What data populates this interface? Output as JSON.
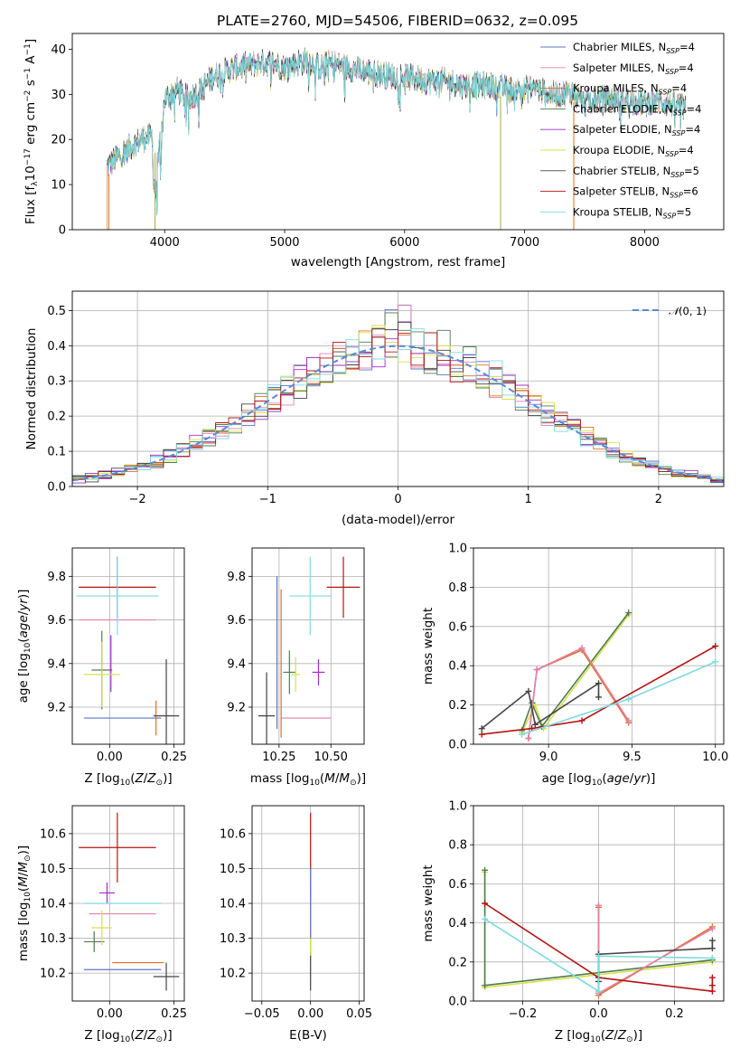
{
  "colors": {
    "Chabrier MILES": "#5b74c9",
    "Salpeter MILES": "#e27fb0",
    "Kroupa MILES": "#e07020",
    "Chabrier ELODIE": "#4e7d4e",
    "Salpeter ELODIE": "#9b2fc2",
    "Kroupa ELODIE": "#d6e04a",
    "Chabrier STELIB": "#444444",
    "Salpeter STELIB": "#b51414",
    "Kroupa STELIB": "#7fd9e0"
  },
  "chart_data": [
    {
      "type": "line",
      "title": "PLATE=2760, MJD=54506, FIBERID=0632, z=0.095",
      "xlabel": "wavelength [Angstrom, rest frame]",
      "ylabel": "Flux [f_λ10^-17 erg cm^-2 s^-1 A^-1]",
      "xlim": [
        3230,
        8660
      ],
      "ylim": [
        0,
        43.5
      ],
      "xticks": [
        4000,
        5000,
        6000,
        7000,
        8000
      ],
      "yticks": [
        0,
        10,
        20,
        30,
        40
      ],
      "legend_placement": "upper-right",
      "legend": [
        {
          "label": "Chabrier MILES, N",
          "sub": "SSP",
          "suffix": "=4"
        },
        {
          "label": "Salpeter MILES, N",
          "sub": "SSP",
          "suffix": "=4"
        },
        {
          "label": "Kroupa MILES, N",
          "sub": "SSP",
          "suffix": "=4"
        },
        {
          "label": "Chabrier ELODIE, N",
          "sub": "SSP",
          "suffix": "=4"
        },
        {
          "label": "Salpeter ELODIE, N",
          "sub": "SSP",
          "suffix": "=4"
        },
        {
          "label": "Kroupa ELODIE, N",
          "sub": "SSP",
          "suffix": "=4"
        },
        {
          "label": "Chabrier STELIB, N",
          "sub": "SSP",
          "suffix": "=5"
        },
        {
          "label": "Salpeter STELIB, N",
          "sub": "SSP",
          "suffix": "=6"
        },
        {
          "label": "Kroupa STELIB, N",
          "sub": "SSP",
          "suffix": "=5"
        }
      ],
      "spectrum_envelope": [
        [
          3520,
          14
        ],
        [
          3600,
          16
        ],
        [
          3700,
          18
        ],
        [
          3800,
          20
        ],
        [
          3900,
          21
        ],
        [
          3950,
          16
        ],
        [
          4000,
          29
        ],
        [
          4100,
          31
        ],
        [
          4200,
          29
        ],
        [
          4300,
          31
        ],
        [
          4400,
          34
        ],
        [
          4500,
          35
        ],
        [
          4600,
          36
        ],
        [
          4700,
          36.5
        ],
        [
          4800,
          37
        ],
        [
          4900,
          37
        ],
        [
          5000,
          36
        ],
        [
          5100,
          37
        ],
        [
          5200,
          37.5
        ],
        [
          5300,
          36
        ],
        [
          5400,
          37
        ],
        [
          5500,
          36
        ],
        [
          5600,
          35.5
        ],
        [
          5700,
          35
        ],
        [
          5800,
          34.5
        ],
        [
          5900,
          34
        ],
        [
          6000,
          34
        ],
        [
          6100,
          33.5
        ],
        [
          6200,
          33
        ],
        [
          6300,
          33
        ],
        [
          6400,
          32.5
        ],
        [
          6500,
          32
        ],
        [
          6600,
          32
        ],
        [
          6700,
          32
        ],
        [
          6800,
          31.5
        ],
        [
          6900,
          31
        ],
        [
          7000,
          31
        ],
        [
          7100,
          31.5
        ],
        [
          7200,
          30
        ],
        [
          7300,
          30
        ],
        [
          7400,
          30.5
        ],
        [
          7500,
          28
        ],
        [
          7600,
          29
        ],
        [
          7700,
          29
        ],
        [
          7800,
          28.5
        ],
        [
          7900,
          28.5
        ],
        [
          8000,
          28
        ],
        [
          8100,
          28.5
        ],
        [
          8200,
          28
        ],
        [
          8300,
          27.5
        ],
        [
          8340,
          27
        ]
      ]
    },
    {
      "type": "step",
      "xlabel": "(data-model)/error",
      "ylabel": "Normed distribution",
      "xlim": [
        -2.5,
        2.5
      ],
      "ylim": [
        0,
        0.555
      ],
      "xticks": [
        -2,
        -1,
        0,
        1,
        2
      ],
      "yticks": [
        0.0,
        0.1,
        0.2,
        0.3,
        0.4,
        0.5
      ],
      "legend_placement": "upper-right",
      "curve_label": "N(0,1)",
      "curve_label_prefix": "𝒩",
      "curve_label_suffix": "(0, 1)",
      "bin_width": 0.1
    },
    {
      "type": "errorbar",
      "xlabel": "Z [log10(Z/Z_sun)]",
      "ylabel": "age [log10(age/yr)]",
      "xlim": [
        -0.145,
        0.29
      ],
      "ylim": [
        9.03,
        9.93
      ],
      "xticks": [
        0.0,
        0.25
      ],
      "yticks": [
        9.2,
        9.4,
        9.6,
        9.8
      ],
      "points": [
        {
          "model": "Chabrier MILES",
          "x": 0.05,
          "xerr": 0.15,
          "y": 9.15,
          "yerr": 0.0
        },
        {
          "model": "Salpeter MILES",
          "x": 0.03,
          "xerr": 0.15,
          "y": 9.6,
          "yerr": 0.0
        },
        {
          "model": "Kroupa MILES",
          "x": 0.18,
          "xerr": 0.0,
          "y": 9.15,
          "yerr": 0.08
        },
        {
          "model": "Chabrier ELODIE",
          "x": -0.03,
          "xerr": 0.04,
          "y": 9.37,
          "yerr": 0.18
        },
        {
          "model": "Salpeter ELODIE",
          "x": 0.005,
          "xerr": 0.0,
          "y": 9.4,
          "yerr": 0.13
        },
        {
          "model": "Kroupa ELODIE",
          "x": -0.03,
          "xerr": 0.07,
          "y": 9.35,
          "yerr": 0.15
        },
        {
          "model": "Chabrier STELIB",
          "x": 0.22,
          "xerr": 0.05,
          "y": 9.16,
          "yerr": 0.26
        },
        {
          "model": "Salpeter STELIB",
          "x": 0.03,
          "xerr": 0.15,
          "y": 9.75,
          "yerr": 0.14
        },
        {
          "model": "Kroupa STELIB",
          "x": 0.03,
          "xerr": 0.16,
          "y": 9.71,
          "yerr": 0.18
        }
      ]
    },
    {
      "type": "errorbar",
      "xlabel": "mass [log10(M/M_sun)]",
      "ylabel": "",
      "xlim": [
        10.12,
        10.66
      ],
      "ylim": [
        9.03,
        9.93
      ],
      "xticks": [
        10.25,
        10.5
      ],
      "yticks": [
        9.2,
        9.4,
        9.6,
        9.8
      ],
      "points": [
        {
          "model": "Chabrier MILES",
          "x": 10.24,
          "xerr": 0.0,
          "y": 9.45,
          "yerr": 0.35
        },
        {
          "model": "Salpeter MILES",
          "x": 10.38,
          "xerr": 0.12,
          "y": 9.15,
          "yerr": 0.0
        },
        {
          "model": "Kroupa MILES",
          "x": 10.26,
          "xerr": 0.0,
          "y": 9.4,
          "yerr": 0.34
        },
        {
          "model": "Chabrier ELODIE",
          "x": 10.3,
          "xerr": 0.03,
          "y": 9.36,
          "yerr": 0.1
        },
        {
          "model": "Salpeter ELODIE",
          "x": 10.44,
          "xerr": 0.03,
          "y": 9.36,
          "yerr": 0.06
        },
        {
          "model": "Kroupa ELODIE",
          "x": 10.33,
          "xerr": 0.02,
          "y": 9.35,
          "yerr": 0.08
        },
        {
          "model": "Chabrier STELIB",
          "x": 10.19,
          "xerr": 0.04,
          "y": 9.16,
          "yerr": 0.2
        },
        {
          "model": "Salpeter STELIB",
          "x": 10.56,
          "xerr": 0.08,
          "y": 9.75,
          "yerr": 0.14
        },
        {
          "model": "Kroupa STELIB",
          "x": 10.4,
          "xerr": 0.1,
          "y": 9.71,
          "yerr": 0.18
        }
      ]
    },
    {
      "type": "line",
      "xlabel": "age [log10(age/yr)]",
      "ylabel": "mass weight",
      "xlim": [
        8.55,
        10.05
      ],
      "ylim": [
        0.0,
        1.0
      ],
      "xticks": [
        9.0,
        9.5,
        10.0
      ],
      "yticks": [
        0.0,
        0.2,
        0.4,
        0.6,
        0.8,
        1.0
      ],
      "series": [
        {
          "model": "Kroupa ELODIE",
          "x": [
            8.84,
            8.92,
            8.97,
            9.48
          ],
          "y": [
            0.06,
            0.2,
            0.08,
            0.66
          ]
        },
        {
          "model": "Chabrier ELODIE",
          "x": [
            8.84,
            8.9,
            8.96,
            9.48
          ],
          "y": [
            0.07,
            0.21,
            0.09,
            0.67
          ]
        },
        {
          "model": "Kroupa MILES",
          "x": [
            8.88,
            8.93,
            9.2,
            9.48
          ],
          "y": [
            0.03,
            0.38,
            0.48,
            0.11
          ]
        },
        {
          "model": "Salpeter MILES",
          "x": [
            8.88,
            8.93,
            9.2,
            9.48
          ],
          "y": [
            0.03,
            0.38,
            0.49,
            0.12
          ]
        },
        {
          "model": "Chabrier STELIB",
          "x": [
            8.6,
            8.88,
            8.92,
            9.3,
            9.3
          ],
          "y": [
            0.08,
            0.27,
            0.1,
            0.31,
            0.24
          ]
        },
        {
          "model": "Salpeter STELIB",
          "x": [
            8.6,
            8.9,
            9.2,
            10.0
          ],
          "y": [
            0.05,
            0.08,
            0.12,
            0.5
          ]
        },
        {
          "model": "Kroupa STELIB",
          "x": [
            8.84,
            9.48,
            10.0
          ],
          "y": [
            0.05,
            0.23,
            0.42
          ]
        }
      ]
    },
    {
      "type": "errorbar",
      "xlabel": "Z [log10(Z/Z_sun)]",
      "ylabel": "mass [log10(M/M_sun)]",
      "xlim": [
        -0.145,
        0.29
      ],
      "ylim": [
        10.12,
        10.68
      ],
      "xticks": [
        0.0,
        0.25
      ],
      "yticks": [
        10.2,
        10.3,
        10.4,
        10.5,
        10.6
      ],
      "points": [
        {
          "model": "Chabrier MILES",
          "x": 0.05,
          "xerr": 0.15,
          "y": 10.21,
          "yerr": 0.0
        },
        {
          "model": "Salpeter MILES",
          "x": 0.05,
          "xerr": 0.13,
          "y": 10.37,
          "yerr": 0.0
        },
        {
          "model": "Kroupa MILES",
          "x": 0.11,
          "xerr": 0.1,
          "y": 10.23,
          "yerr": 0.0
        },
        {
          "model": "Chabrier ELODIE",
          "x": -0.06,
          "xerr": 0.04,
          "y": 10.29,
          "yerr": 0.03
        },
        {
          "model": "Salpeter ELODIE",
          "x": -0.01,
          "xerr": 0.03,
          "y": 10.43,
          "yerr": 0.03
        },
        {
          "model": "Kroupa ELODIE",
          "x": -0.03,
          "xerr": 0.04,
          "y": 10.33,
          "yerr": 0.05
        },
        {
          "model": "Chabrier STELIB",
          "x": 0.22,
          "xerr": 0.05,
          "y": 10.19,
          "yerr": 0.04
        },
        {
          "model": "Salpeter STELIB",
          "x": 0.03,
          "xerr": 0.15,
          "y": 10.56,
          "yerr": 0.1
        },
        {
          "model": "Kroupa STELIB",
          "x": 0.05,
          "xerr": 0.15,
          "y": 10.4,
          "yerr": 0.0
        }
      ]
    },
    {
      "type": "errorbar",
      "xlabel": "E(B-V)",
      "ylabel": "",
      "xlim": [
        -0.06,
        0.055
      ],
      "ylim": [
        10.12,
        10.68
      ],
      "xticks": [
        -0.05,
        0.0,
        0.05
      ],
      "yticks": [
        10.2,
        10.3,
        10.4,
        10.5,
        10.6
      ],
      "points": [
        {
          "model": "Salpeter STELIB",
          "x": 0.0,
          "xerr": 0.0,
          "y": 10.48,
          "yerr": 0.18
        },
        {
          "model": "Chabrier STELIB",
          "x": 0.0,
          "xerr": 0.0,
          "y": 10.3,
          "yerr": 0.15
        },
        {
          "model": "Kroupa STELIB",
          "x": 0.0,
          "xerr": 0.0,
          "y": 10.38,
          "yerr": 0.12
        },
        {
          "model": "Kroupa ELODIE",
          "x": 0.0,
          "xerr": 0.0,
          "y": 10.33,
          "yerr": 0.08
        },
        {
          "model": "Chabrier MILES",
          "x": 0.0,
          "xerr": 0.0,
          "y": 10.4,
          "yerr": 0.1
        }
      ]
    },
    {
      "type": "line",
      "xlabel": "Z [log10(Z/Z_sun)]",
      "ylabel": "mass weight",
      "xlim": [
        -0.33,
        0.33
      ],
      "ylim": [
        0.0,
        1.0
      ],
      "xticks": [
        -0.2,
        0.0,
        0.2
      ],
      "yticks": [
        0.0,
        0.2,
        0.4,
        0.6,
        0.8,
        1.0
      ],
      "series": [
        {
          "model": "Kroupa ELODIE",
          "x": [
            -0.3,
            -0.3,
            0.3
          ],
          "y": [
            0.66,
            0.07,
            0.2
          ]
        },
        {
          "model": "Chabrier ELODIE",
          "x": [
            -0.3,
            -0.3,
            0.3
          ],
          "y": [
            0.67,
            0.08,
            0.21
          ]
        },
        {
          "model": "Kroupa MILES",
          "x": [
            0.0,
            0.0,
            0.3
          ],
          "y": [
            0.48,
            0.03,
            0.38
          ]
        },
        {
          "model": "Salpeter MILES",
          "x": [
            0.0,
            0.0,
            0.3
          ],
          "y": [
            0.49,
            0.04,
            0.37
          ]
        },
        {
          "model": "Chabrier STELIB",
          "x": [
            0.0,
            0.0,
            0.3,
            0.3
          ],
          "y": [
            0.1,
            0.24,
            0.27,
            0.31
          ]
        },
        {
          "model": "Salpeter STELIB",
          "x": [
            -0.3,
            0.0,
            0.3,
            0.3,
            0.3
          ],
          "y": [
            0.5,
            0.12,
            0.05,
            0.08,
            0.12
          ]
        },
        {
          "model": "Kroupa STELIB",
          "x": [
            -0.3,
            0.0,
            0.0,
            0.3
          ],
          "y": [
            0.42,
            0.05,
            0.23,
            0.22
          ]
        }
      ]
    }
  ]
}
